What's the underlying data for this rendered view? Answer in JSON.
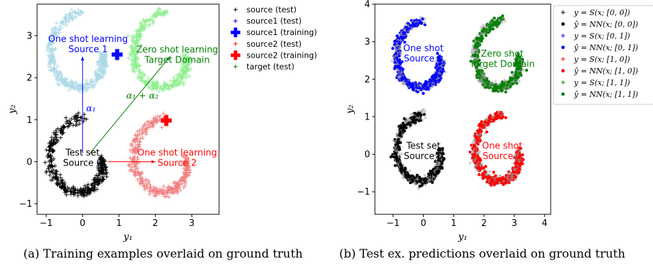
{
  "chart_data": [
    {
      "type": "scatter",
      "panel": "a",
      "xlabel": "y₁",
      "ylabel": "y₂",
      "xlim": [
        -1.25,
        3.75
      ],
      "ylim": [
        -1.25,
        3.75
      ],
      "xticks": [
        -1,
        0,
        1,
        2,
        3
      ],
      "yticks": [
        -1,
        0,
        1,
        2,
        3
      ],
      "caption": "(a) Training examples overlaid on ground truth",
      "clusters": [
        {
          "name": "source (test)",
          "marker": "+",
          "color": "#000000",
          "center": [
            0.0,
            0.0
          ],
          "count": 380
        },
        {
          "name": "source1 (test)",
          "marker": "+",
          "color": "#add8e6",
          "center": [
            0.0,
            2.5
          ],
          "count": 380
        },
        {
          "name": "source2 (test)",
          "marker": "+",
          "color": "#f08080",
          "center": [
            2.3,
            0.0
          ],
          "count": 380
        },
        {
          "name": "target (test)",
          "marker": "+",
          "color": "#90ee90",
          "center": [
            2.3,
            2.5
          ],
          "count": 380
        }
      ],
      "training_points": [
        {
          "name": "source1 (training)",
          "color": "#0000ff",
          "x": 0.95,
          "y": 2.55
        },
        {
          "name": "source2 (training)",
          "color": "#ff0000",
          "x": 2.3,
          "y": 0.98
        }
      ],
      "arrows": [
        {
          "color": "#0000ff",
          "from": [
            0,
            0.2
          ],
          "to": [
            0,
            2.5
          ],
          "label": "α₁",
          "label_at": [
            0.1,
            1.2
          ]
        },
        {
          "color": "#ff0000",
          "from": [
            0.7,
            0.0
          ],
          "to": [
            2.0,
            0.0
          ]
        },
        {
          "color": "#008000",
          "from": [
            0.2,
            0.2
          ],
          "to": [
            2.4,
            2.5
          ],
          "label": "α₁ + α₂",
          "label_at": [
            1.2,
            1.5
          ]
        }
      ],
      "annotations": [
        {
          "lines": [
            "One shot learning",
            "Source 1"
          ],
          "color": "#0000ff",
          "at": [
            0.15,
            2.85
          ]
        },
        {
          "lines": [
            "Zero shot learning",
            "Target Domain"
          ],
          "color": "#008000",
          "at": [
            2.6,
            2.6
          ]
        },
        {
          "lines": [
            "One shot learning",
            "Source 2"
          ],
          "color": "#ff0000",
          "at": [
            2.6,
            0.15
          ]
        },
        {
          "lines": [
            "Test set",
            "Source 0"
          ],
          "color": "#000000",
          "at": [
            0.0,
            0.15
          ]
        }
      ],
      "legend": {
        "placement": "right",
        "entries": [
          {
            "label": "source (test)",
            "marker": "plus",
            "color": "#000000"
          },
          {
            "label": "source1 (test)",
            "marker": "plus",
            "color": "#0000ff"
          },
          {
            "label": "source1 (training)",
            "marker": "bigplus",
            "color": "#0000ff"
          },
          {
            "label": "source2 (test)",
            "marker": "plus",
            "color": "#ff0000"
          },
          {
            "label": "source2 (training)",
            "marker": "bigplus",
            "color": "#ff0000"
          },
          {
            "label": "target (test)",
            "marker": "plus",
            "color": "#008000"
          }
        ]
      }
    },
    {
      "type": "scatter",
      "panel": "b",
      "xlabel": "y₁",
      "ylabel": "y₂",
      "xlim": [
        -1.6,
        4.2
      ],
      "ylim": [
        -1.6,
        4.0
      ],
      "xticks": [
        -1,
        0,
        1,
        2,
        3,
        4
      ],
      "yticks": [
        -1,
        0,
        1,
        2,
        3,
        4
      ],
      "caption": "(b) Test ex. predictions overlaid on ground truth",
      "clusters": [
        {
          "name": "y = S(x; [0, 0])",
          "color": "#000000",
          "center": [
            0.0,
            0.0
          ],
          "count": 380
        },
        {
          "name": "y = S(x; [0, 1])",
          "color": "#0000ff",
          "center": [
            0.0,
            2.5
          ],
          "count": 380
        },
        {
          "name": "y = S(x; [1, 0])",
          "color": "#ff0000",
          "center": [
            2.6,
            0.0
          ],
          "count": 380
        },
        {
          "name": "y = S(x; [1, 1])",
          "color": "#008000",
          "center": [
            2.6,
            2.5
          ],
          "count": 380
        }
      ],
      "annotations": [
        {
          "lines": [
            "One shot",
            "Source 1"
          ],
          "color": "#0000ff",
          "at": [
            0.0,
            2.75
          ]
        },
        {
          "lines": [
            "Zero shot",
            "Target Domain"
          ],
          "color": "#008000",
          "at": [
            2.6,
            2.6
          ]
        },
        {
          "lines": [
            "One shot",
            "Source 2"
          ],
          "color": "#ff0000",
          "at": [
            2.6,
            0.15
          ]
        },
        {
          "lines": [
            "Test set",
            "Source 0"
          ],
          "color": "#000000",
          "at": [
            0.0,
            0.15
          ]
        }
      ],
      "legend": {
        "placement": "right",
        "entries": [
          {
            "label": "y = S(x; [0, 0])",
            "marker": "plus",
            "color": "#000000"
          },
          {
            "label": "ŷ = NN(x; [0, 0])",
            "marker": "dot",
            "color": "#000000"
          },
          {
            "label": "y = S(x; [0, 1])",
            "marker": "plus",
            "color": "#0000ff"
          },
          {
            "label": "ŷ = NN(x; [0, 1])",
            "marker": "dot",
            "color": "#0000ff"
          },
          {
            "label": "y = S(x; [1, 0])",
            "marker": "plus",
            "color": "#ff0000"
          },
          {
            "label": "ŷ = NN(x; [1, 0])",
            "marker": "dot",
            "color": "#ff0000"
          },
          {
            "label": "y = S(x; [1, 1])",
            "marker": "plus",
            "color": "#008000"
          },
          {
            "label": "ŷ = NN(x; [1, 1])",
            "marker": "dot",
            "color": "#008000"
          }
        ]
      }
    }
  ]
}
